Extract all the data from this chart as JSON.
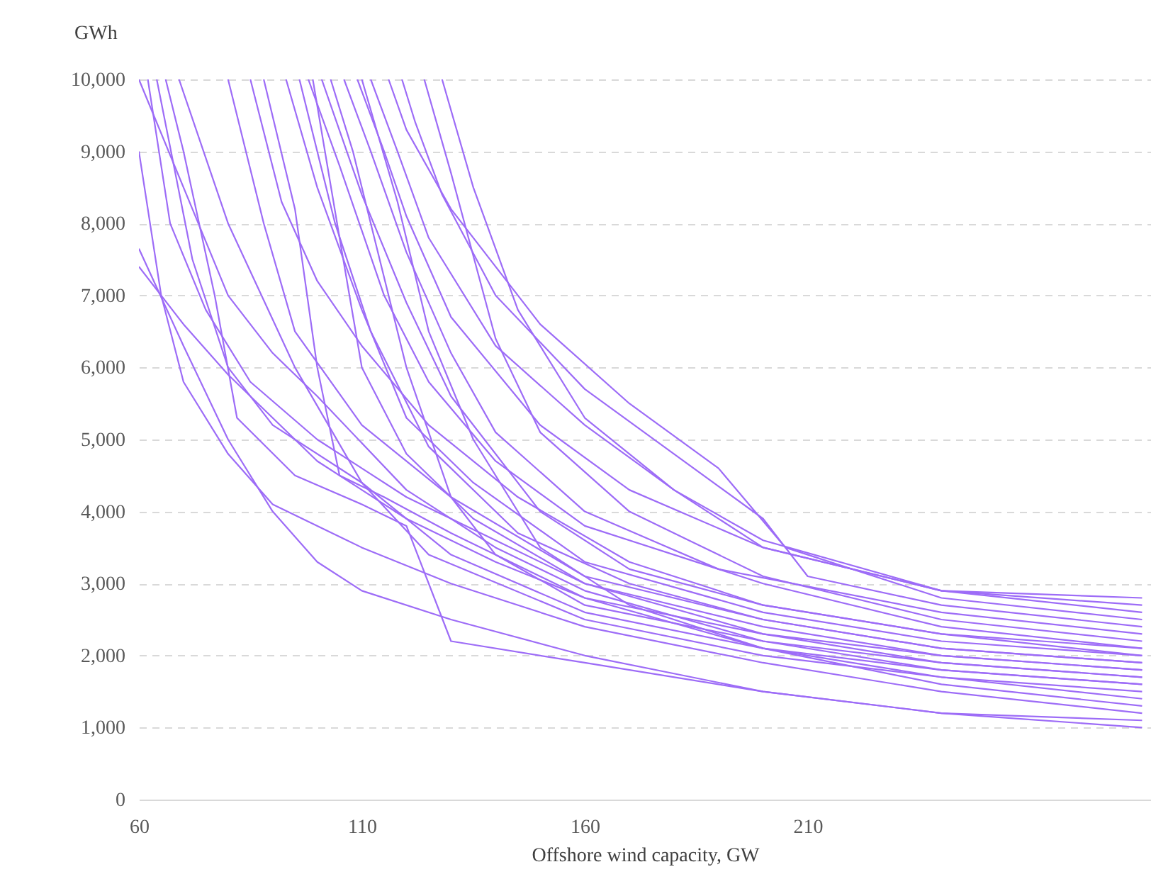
{
  "chart_data": {
    "type": "line",
    "xlabel": "Offshore wind capacity, GW",
    "ylabel": "GWh",
    "xlim": [
      60,
      287
    ],
    "xticks": [
      60,
      110,
      160,
      210
    ],
    "ylim": [
      0,
      10000
    ],
    "yticks": [
      0,
      {
        "value": 1000,
        "label": "1,000"
      },
      {
        "value": 2000,
        "label": "2,000"
      },
      {
        "value": 3000,
        "label": "3,000"
      },
      {
        "value": 4000,
        "label": "4,000"
      },
      {
        "value": 5000,
        "label": "5,000"
      },
      {
        "value": 6000,
        "label": "6,000"
      },
      {
        "value": 7000,
        "label": "7,000"
      },
      {
        "value": 8000,
        "label": "8,000"
      },
      {
        "value": 9000,
        "label": "9,000"
      },
      {
        "value": 10000,
        "label": "10,000"
      }
    ],
    "grid": "y",
    "series": [
      {
        "color": "#9d6cf7",
        "x": [
          60,
          70,
          80,
          100,
          120,
          140,
          160,
          200,
          240,
          285
        ],
        "values": [
          7400,
          6600,
          5900,
          4700,
          3900,
          3300,
          2800,
          2100,
          1700,
          1400
        ]
      },
      {
        "color": "#9d6cf7",
        "x": [
          60,
          70,
          80,
          90,
          100,
          110,
          130,
          160,
          200,
          240,
          285
        ],
        "values": [
          7650,
          6300,
          5000,
          4000,
          3300,
          2900,
          2500,
          2000,
          1500,
          1200,
          1000
        ]
      },
      {
        "color": "#9d6cf7",
        "x": [
          60,
          65,
          70,
          80,
          90,
          110,
          130,
          160,
          200,
          240,
          285
        ],
        "values": [
          9000,
          7000,
          5800,
          4800,
          4100,
          3500,
          3000,
          2400,
          1900,
          1500,
          1200
        ]
      },
      {
        "color": "#9d6cf7",
        "x": [
          60,
          70,
          80,
          90,
          100,
          120,
          140,
          160,
          200,
          240,
          285
        ],
        "values": [
          10000,
          8500,
          7000,
          6200,
          5600,
          4300,
          3500,
          2900,
          2200,
          1800,
          1600
        ]
      },
      {
        "color": "#9d6cf7",
        "x": [
          62,
          67,
          75,
          85,
          100,
          120,
          160,
          200,
          240,
          285
        ],
        "values": [
          10000,
          8000,
          6800,
          5800,
          5000,
          4200,
          3000,
          2400,
          2000,
          1800
        ]
      },
      {
        "color": "#9d6cf7",
        "x": [
          66,
          70,
          77,
          82,
          95,
          110,
          120,
          130,
          160,
          200,
          240,
          285
        ],
        "values": [
          10000,
          9000,
          7000,
          5300,
          4500,
          4100,
          3800,
          2200,
          1900,
          1500,
          1200,
          1100
        ]
      },
      {
        "color": "#9d6cf7",
        "x": [
          69,
          80,
          95,
          110,
          125,
          160,
          200,
          240,
          285
        ],
        "values": [
          10000,
          8000,
          6000,
          4400,
          3400,
          2500,
          2000,
          1700,
          1500
        ]
      },
      {
        "color": "#9d6cf7",
        "x": [
          80,
          88,
          95,
          110,
          130,
          160,
          200,
          240,
          285
        ],
        "values": [
          10000,
          8000,
          6500,
          5200,
          4200,
          3100,
          2500,
          2100,
          1900
        ]
      },
      {
        "color": "#9d6cf7",
        "x": [
          88,
          95,
          100,
          105,
          115,
          130,
          160,
          200,
          240,
          285
        ],
        "values": [
          10000,
          8200,
          6000,
          4500,
          4200,
          3700,
          2800,
          2300,
          2000,
          1800
        ]
      },
      {
        "color": "#9d6cf7",
        "x": [
          93,
          100,
          110,
          120,
          135,
          160,
          200,
          240,
          285
        ],
        "values": [
          10000,
          8500,
          6800,
          5300,
          4400,
          3300,
          2600,
          2200,
          2000
        ]
      },
      {
        "color": "#9d6cf7",
        "x": [
          98,
          105,
          115,
          125,
          140,
          160,
          200,
          240,
          285
        ],
        "values": [
          10000,
          8800,
          7000,
          5800,
          4700,
          3800,
          3000,
          2400,
          2100
        ]
      },
      {
        "color": "#9d6cf7",
        "x": [
          101,
          110,
          120,
          130,
          150,
          170,
          200,
          240,
          285
        ],
        "values": [
          10000,
          8400,
          6900,
          5600,
          4000,
          3200,
          2700,
          2300,
          2100
        ]
      },
      {
        "color": "#9d6cf7",
        "x": [
          103,
          108,
          112,
          120,
          130,
          140,
          160,
          200,
          240,
          285
        ],
        "values": [
          10000,
          9000,
          8000,
          6000,
          4200,
          3400,
          2700,
          2200,
          1900,
          1700
        ]
      },
      {
        "color": "#9d6cf7",
        "x": [
          106,
          112,
          120,
          130,
          140,
          160,
          190,
          240,
          285
        ],
        "values": [
          10000,
          9000,
          7600,
          6200,
          5100,
          4000,
          3200,
          2600,
          2300
        ]
      },
      {
        "color": "#9d6cf7",
        "x": [
          109,
          115,
          120,
          130,
          150,
          170,
          200,
          240,
          285
        ],
        "values": [
          10000,
          9000,
          8100,
          6700,
          5200,
          4300,
          3500,
          2900,
          2700
        ]
      },
      {
        "color": "#9d6cf7",
        "x": [
          112,
          118,
          125,
          140,
          160,
          180,
          200,
          240,
          285
        ],
        "values": [
          10000,
          9000,
          7800,
          6300,
          5200,
          4300,
          3500,
          2900,
          2800
        ]
      },
      {
        "color": "#9d6cf7",
        "x": [
          116,
          120,
          130,
          150,
          170,
          190,
          205,
          240,
          285
        ],
        "values": [
          10000,
          9300,
          8200,
          6600,
          5500,
          4600,
          3500,
          2800,
          2500
        ]
      },
      {
        "color": "#9d6cf7",
        "x": [
          119,
          122,
          128,
          140,
          160,
          180,
          200,
          210,
          240,
          285
        ],
        "values": [
          10000,
          9400,
          8400,
          7000,
          5700,
          4800,
          3900,
          3100,
          2700,
          2400
        ]
      },
      {
        "color": "#9d6cf7",
        "x": [
          124,
          130,
          140,
          150,
          170,
          200,
          240,
          285
        ],
        "values": [
          10000,
          8700,
          6400,
          5100,
          4000,
          3100,
          2500,
          2200
        ]
      },
      {
        "color": "#9d6cf7",
        "x": [
          99,
          105,
          110,
          120,
          135,
          160,
          200,
          240,
          285
        ],
        "values": [
          10000,
          7800,
          6000,
          4800,
          3900,
          3000,
          2300,
          1900,
          1700
        ]
      },
      {
        "color": "#9d6cf7",
        "x": [
          64,
          72,
          80,
          90,
          110,
          130,
          160,
          200,
          240,
          285
        ],
        "values": [
          10000,
          7500,
          6000,
          5200,
          4400,
          3400,
          2600,
          2100,
          1800,
          1600
        ]
      },
      {
        "color": "#9d6cf7",
        "x": [
          85,
          92,
          100,
          110,
          125,
          145,
          170,
          200,
          240,
          285
        ],
        "values": [
          10000,
          8300,
          7200,
          6300,
          5200,
          4200,
          3300,
          2700,
          2300,
          2000
        ]
      },
      {
        "color": "#9d6cf7",
        "x": [
          96,
          104,
          112,
          125,
          145,
          170,
          200,
          240,
          285
        ],
        "values": [
          10000,
          8000,
          6500,
          4900,
          3700,
          3000,
          2500,
          2100,
          1900
        ]
      },
      {
        "color": "#9d6cf7",
        "x": [
          110,
          118,
          125,
          135,
          150,
          170,
          200,
          240,
          285
        ],
        "values": [
          10000,
          8300,
          6500,
          5000,
          3500,
          2700,
          2100,
          1600,
          1300
        ]
      },
      {
        "color": "#9d6cf7",
        "x": [
          128,
          135,
          145,
          160,
          180,
          200,
          240,
          285
        ],
        "values": [
          10000,
          8500,
          6800,
          5300,
          4300,
          3600,
          2900,
          2600
        ]
      }
    ]
  }
}
